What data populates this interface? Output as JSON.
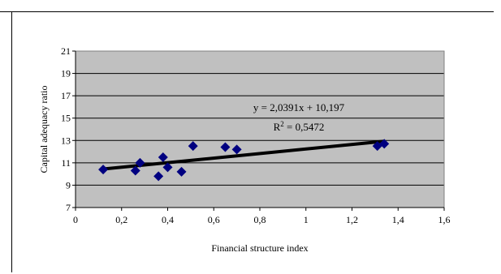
{
  "chart_data": {
    "type": "scatter",
    "title": "",
    "xlabel": "Financial structure index",
    "ylabel": "Capital adequacy ratio",
    "xlim": [
      0,
      1.6
    ],
    "ylim": [
      7,
      21
    ],
    "x_ticks": [
      "0",
      "0,2",
      "0,4",
      "0,6",
      "0,8",
      "1",
      "1,2",
      "1,4",
      "1,6"
    ],
    "y_ticks": [
      "7",
      "9",
      "11",
      "13",
      "15",
      "17",
      "19",
      "21"
    ],
    "grid": true,
    "colors": {
      "plot_bg": "#c0c0c0",
      "marker": "#000080",
      "trendline": "#000000"
    },
    "series": [
      {
        "points": [
          {
            "x": 0.12,
            "y": 10.4
          },
          {
            "x": 0.26,
            "y": 10.3
          },
          {
            "x": 0.28,
            "y": 11.0
          },
          {
            "x": 0.36,
            "y": 9.8
          },
          {
            "x": 0.38,
            "y": 11.5
          },
          {
            "x": 0.4,
            "y": 10.6
          },
          {
            "x": 0.46,
            "y": 10.2
          },
          {
            "x": 0.51,
            "y": 12.5
          },
          {
            "x": 0.65,
            "y": 12.4
          },
          {
            "x": 0.7,
            "y": 12.2
          },
          {
            "x": 1.31,
            "y": 12.5
          },
          {
            "x": 1.34,
            "y": 12.7
          }
        ]
      }
    ],
    "trendline": {
      "slope": 2.0391,
      "intercept": 10.197,
      "x_range": [
        0.12,
        1.34
      ],
      "equation_label": "y = 2,0391x + 10,197",
      "r2_base": "R",
      "r2_exp": "2",
      "r2_value": " = 0,5472"
    }
  }
}
